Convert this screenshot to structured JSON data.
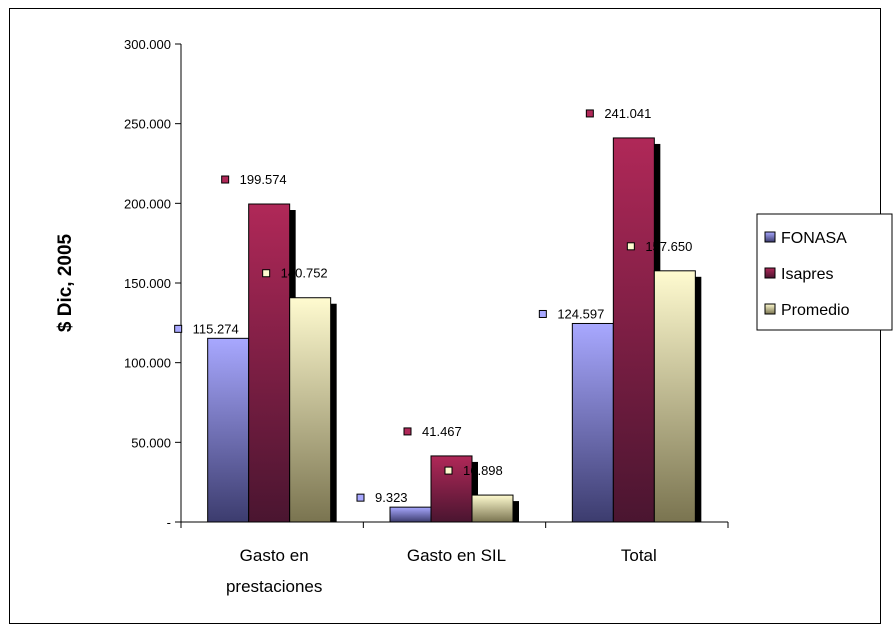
{
  "chart_data": {
    "type": "bar",
    "title": "",
    "xlabel": "",
    "ylabel": "$ Dic, 2005",
    "ylim": [
      0,
      300000
    ],
    "yticks": [
      0,
      50000,
      100000,
      150000,
      200000,
      250000,
      300000
    ],
    "ytick_labels": [
      "-",
      "50.000",
      "100.000",
      "150.000",
      "200.000",
      "250.000",
      "300.000"
    ],
    "categories": [
      [
        "Gasto en",
        "prestaciones"
      ],
      [
        "Gasto en SIL"
      ],
      [
        "Total"
      ]
    ],
    "series": [
      {
        "name": "FONASA",
        "values": [
          115274,
          9323,
          124597
        ],
        "labels": [
          "115.274",
          "9.323",
          "124.597"
        ]
      },
      {
        "name": "Isapres",
        "values": [
          199574,
          41467,
          241041
        ],
        "labels": [
          "199.574",
          "41.467",
          "241.041"
        ]
      },
      {
        "name": "Promedio",
        "values": [
          140752,
          16898,
          157650
        ],
        "labels": [
          "140.752",
          "16.898",
          "157.650"
        ]
      }
    ],
    "legend_position": "right",
    "grid": false
  },
  "colors": {
    "FONASA": {
      "light": "#a8a8ff",
      "dark": "#3c3c6e"
    },
    "Isapres": {
      "light": "#b02858",
      "dark": "#4a1530"
    },
    "Promedio": {
      "light": "#fffbd0",
      "dark": "#7a7450"
    }
  }
}
